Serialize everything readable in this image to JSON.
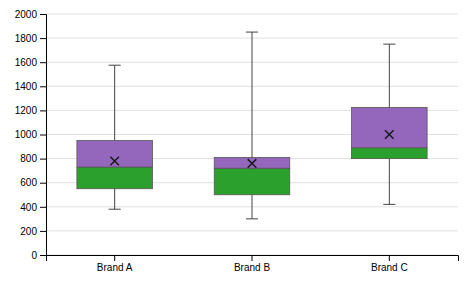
{
  "chart_data": {
    "type": "box",
    "categories": [
      "Brand A",
      "Brand B",
      "Brand C"
    ],
    "boxes": [
      {
        "whisker_low": 380,
        "q1": 550,
        "median": 730,
        "q3": 950,
        "whisker_high": 1575,
        "mean": 780
      },
      {
        "whisker_low": 300,
        "q1": 500,
        "median": 720,
        "q3": 810,
        "whisker_high": 1850,
        "mean": 760
      },
      {
        "whisker_low": 420,
        "q1": 800,
        "median": 890,
        "q3": 1225,
        "whisker_high": 1750,
        "mean": 1000
      }
    ],
    "ylim": [
      0,
      2000
    ],
    "yticks": [
      0,
      200,
      400,
      600,
      800,
      1000,
      1200,
      1400,
      1600,
      1800,
      2000
    ],
    "grid": true,
    "marker": "x"
  }
}
